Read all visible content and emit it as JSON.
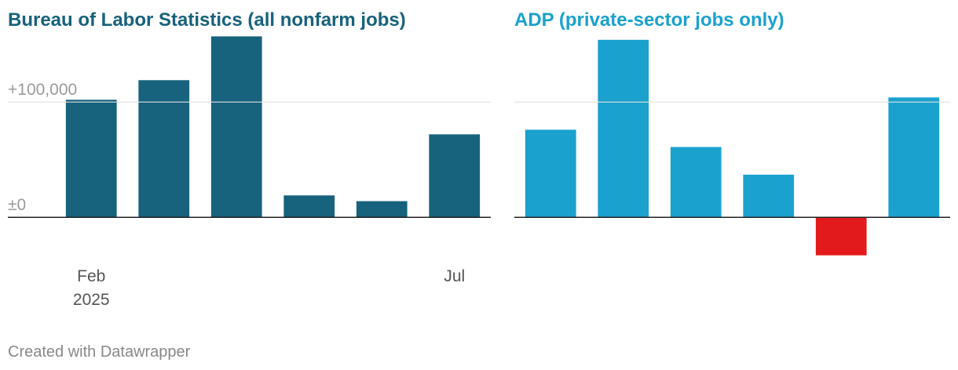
{
  "chart_data": [
    {
      "type": "bar",
      "title": "Bureau of Labor Statistics (all nonfarm jobs)",
      "categories": [
        "Feb 2025",
        null,
        null,
        null,
        null,
        "Jul"
      ],
      "values": [
        102000,
        119000,
        157000,
        19000,
        14000,
        72000
      ],
      "color": "#17627c",
      "negative_color": "#e31a1c",
      "ylim": [
        -40000,
        160000
      ],
      "yticks": [
        {
          "value": 0,
          "label": "±0"
        },
        {
          "value": 100000,
          "label": "+100,000"
        }
      ],
      "grid": true
    },
    {
      "type": "bar",
      "title": "ADP (private-sector jobs only)",
      "categories": [
        null,
        null,
        null,
        null,
        null,
        null
      ],
      "values": [
        76000,
        154000,
        61000,
        37000,
        -33000,
        104000
      ],
      "color": "#1aa1ce",
      "negative_color": "#e31a1c",
      "ylim": [
        -40000,
        160000
      ],
      "yticks": [
        0,
        100000
      ],
      "grid": true
    }
  ],
  "footer": "Created with Datawrapper"
}
